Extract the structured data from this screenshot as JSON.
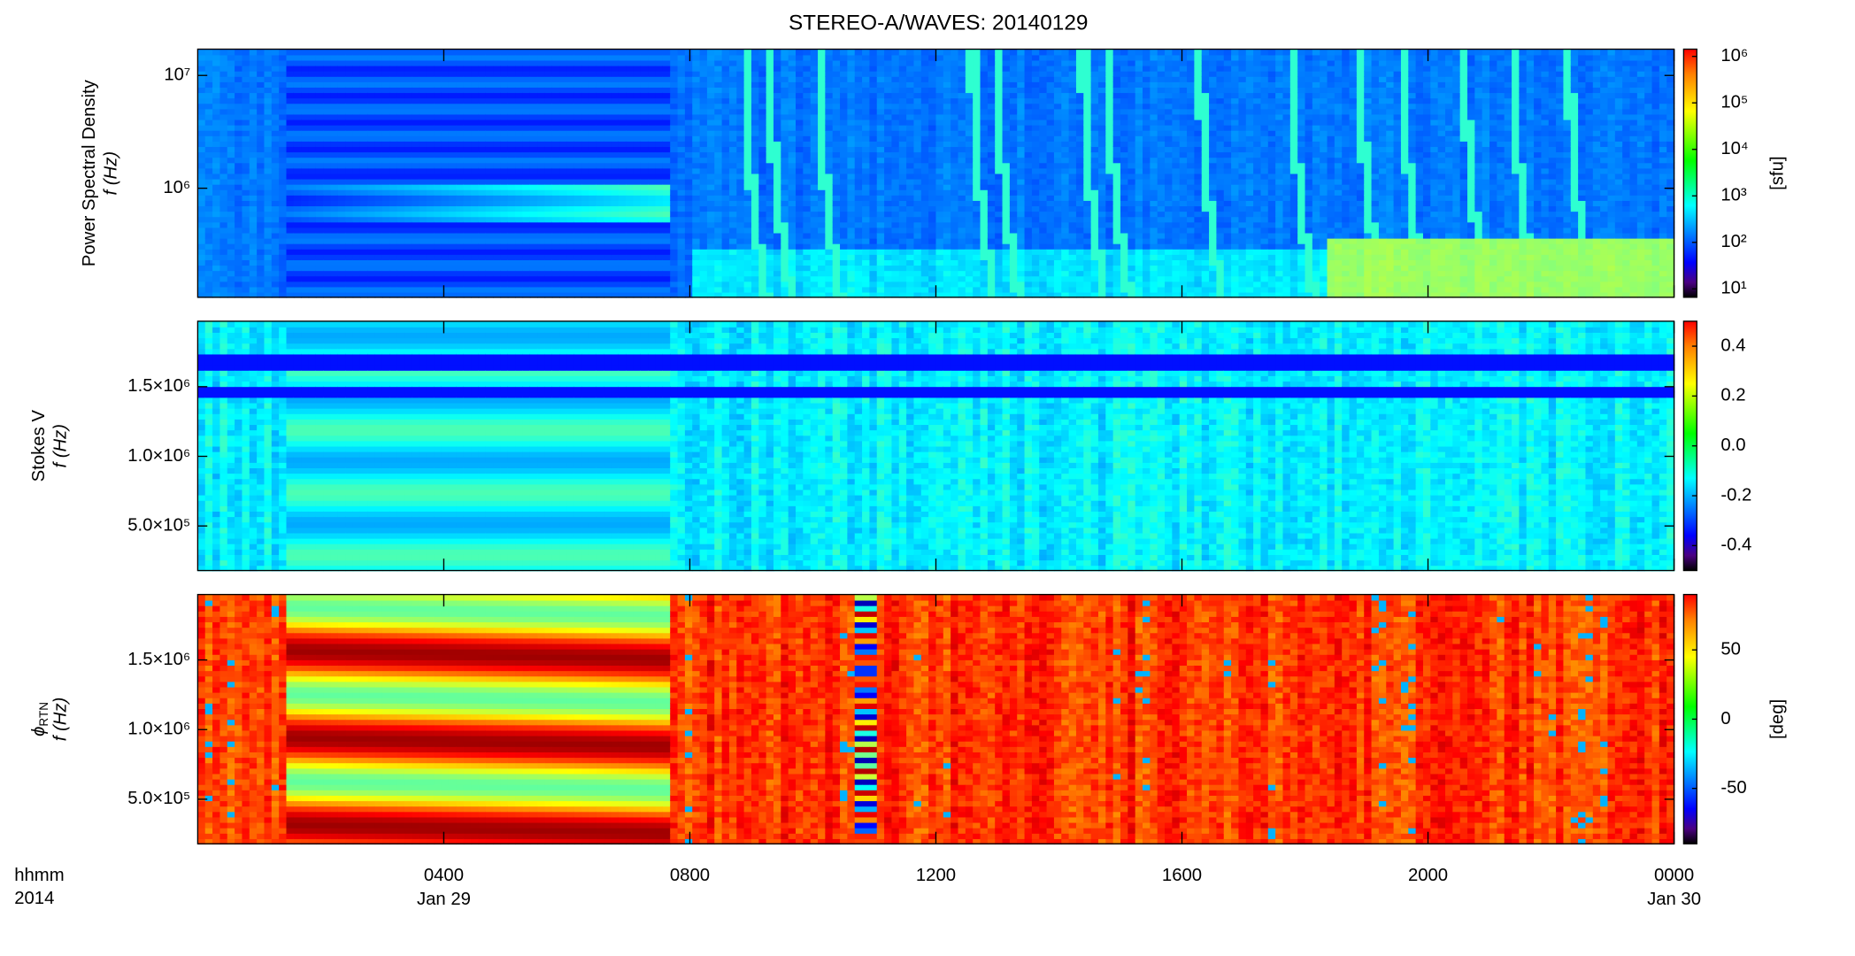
{
  "title": "STEREO-A/WAVES: 20140129",
  "x_axis": {
    "xlim": [
      0,
      24
    ],
    "xticks": [
      {
        "value": 4,
        "label": "0400"
      },
      {
        "value": 8,
        "label": "0800"
      },
      {
        "value": 12,
        "label": "1200"
      },
      {
        "value": 16,
        "label": "1600"
      },
      {
        "value": 20,
        "label": "2000"
      },
      {
        "value": 24,
        "label": "0000"
      }
    ],
    "date_labels": [
      {
        "value": 4,
        "label": "Jan 29"
      },
      {
        "value": 24,
        "label": "Jan 30"
      }
    ],
    "corner_labels": [
      "hhmm",
      "2014"
    ]
  },
  "chart_data": [
    {
      "type": "heatmap",
      "colormap": "jet",
      "ylabel": [
        "Power Spectral Density",
        "f (Hz)"
      ],
      "log_scale": true,
      "ylim": [
        108000,
        17100000
      ],
      "yticks": [
        {
          "value": 1000000,
          "label": "10⁶"
        },
        {
          "value": 10000000,
          "label": "10⁷"
        }
      ],
      "colorbar": {
        "log_scale": true,
        "clim": [
          6.6,
          1430000
        ],
        "label": "[sfu]",
        "ticks": [
          {
            "value": 10,
            "label": "10¹"
          },
          {
            "value": 100,
            "label": "10²"
          },
          {
            "value": 1000,
            "label": "10³"
          },
          {
            "value": 10000,
            "label": "10⁴"
          },
          {
            "value": 100000,
            "label": "10⁵"
          },
          {
            "value": 1000000,
            "label": "10⁶"
          }
        ]
      }
    },
    {
      "type": "heatmap",
      "colormap": "jet",
      "ylabel": [
        "Stokes V",
        "f (Hz)"
      ],
      "log_scale": false,
      "ylim": [
        180000,
        1970000
      ],
      "yticks": [
        {
          "value": 500000,
          "label": "5.0×10⁵"
        },
        {
          "value": 1000000,
          "label": "1.0×10⁶"
        },
        {
          "value": 1500000,
          "label": "1.5×10⁶"
        }
      ],
      "colorbar": {
        "log_scale": false,
        "clim": [
          -0.5,
          0.5
        ],
        "ticks": [
          -0.4,
          -0.2,
          {
            "value": 0,
            "label": "0.0"
          },
          0.2,
          0.4
        ]
      }
    },
    {
      "type": "heatmap",
      "colormap": "jet",
      "ylabel": [
        "ϕ",
        "f (Hz)"
      ],
      "ylabel_subscript": "RTN",
      "log_scale": false,
      "ylim": [
        180000,
        1970000
      ],
      "yticks": [
        {
          "value": 500000,
          "label": "5.0×10⁵"
        },
        {
          "value": 1000000,
          "label": "1.0×10⁶"
        },
        {
          "value": 1500000,
          "label": "1.5×10⁶"
        }
      ],
      "colorbar": {
        "log_scale": false,
        "clim": [
          -90,
          90
        ],
        "label": "[deg]",
        "ticks": [
          -50,
          0,
          50
        ]
      }
    }
  ]
}
